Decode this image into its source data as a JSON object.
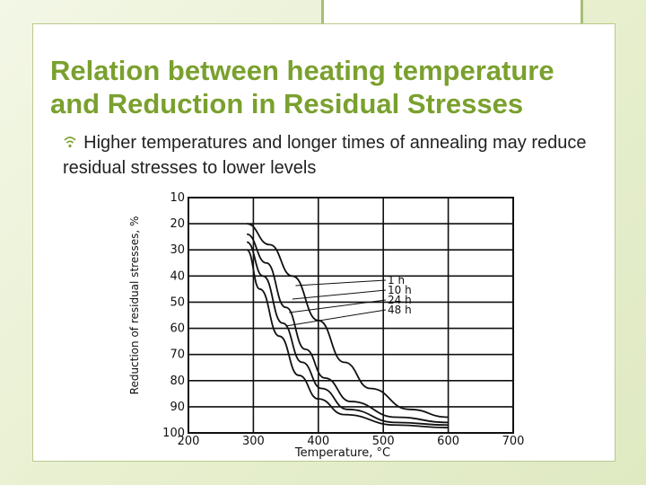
{
  "slide": {
    "title_line1": "Relation between heating temperature",
    "title_line2": "and Reduction in Residual Stresses",
    "bullet_icon": "wifi-bullet-icon",
    "bullet": "Higher temperatures and longer times of annealing may reduce residual stresses to lower levels"
  },
  "colors": {
    "accent": "#7aa02e",
    "frame": "#a9be74",
    "text": "#222222"
  },
  "chart_data": {
    "type": "line",
    "title": "",
    "xlabel": "Temperature, °C",
    "ylabel": "Reduction of residual stresses, %",
    "xlim": [
      200,
      700
    ],
    "ylim": [
      10,
      100
    ],
    "y_inverted": true,
    "grid": true,
    "x_ticks": [
      "200",
      "300",
      "400",
      "500",
      "600",
      "700"
    ],
    "y_ticks": [
      "10",
      "20",
      "30",
      "40",
      "50",
      "60",
      "70",
      "80",
      "90",
      "100"
    ],
    "series": [
      {
        "name": "1 h",
        "x": [
          290,
          325,
          360,
          400,
          440,
          480,
          540,
          600
        ],
        "y": [
          20,
          28,
          40,
          57,
          73,
          83,
          91,
          94
        ]
      },
      {
        "name": "10 h",
        "x": [
          290,
          320,
          350,
          380,
          410,
          450,
          520,
          600
        ],
        "y": [
          24,
          35,
          52,
          68,
          79,
          88,
          94,
          96
        ]
      },
      {
        "name": "24 h",
        "x": [
          290,
          315,
          345,
          375,
          405,
          445,
          520,
          600
        ],
        "y": [
          27,
          40,
          58,
          73,
          83,
          91,
          96,
          97
        ]
      },
      {
        "name": "48 h",
        "x": [
          290,
          310,
          340,
          370,
          400,
          440,
          520,
          600
        ],
        "y": [
          30,
          45,
          63,
          78,
          87,
          93,
          97,
          98
        ]
      }
    ]
  }
}
